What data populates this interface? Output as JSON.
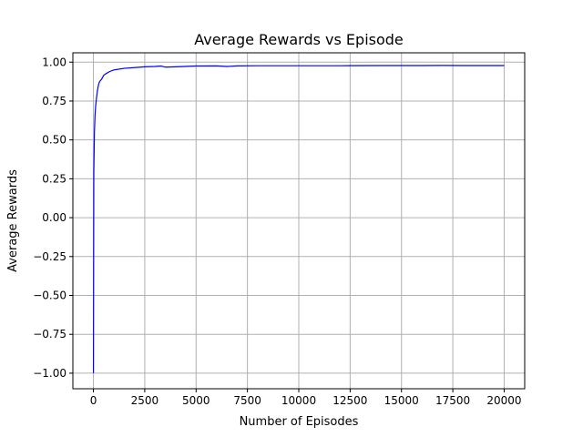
{
  "chart_data": {
    "type": "line",
    "title": "Average Rewards vs Episode",
    "xlabel": "Number of Episodes",
    "ylabel": "Average Rewards",
    "xlim": [
      -1000,
      21000
    ],
    "ylim": [
      -1.1,
      1.06
    ],
    "xticks": [
      0,
      2500,
      5000,
      7500,
      10000,
      12500,
      15000,
      17500,
      20000
    ],
    "yticks": [
      -1.0,
      -0.75,
      -0.5,
      -0.25,
      0.0,
      0.25,
      0.5,
      0.75,
      1.0
    ],
    "ytick_labels": [
      "−1.00",
      "−0.75",
      "−0.50",
      "−0.25",
      "0.00",
      "0.25",
      "0.50",
      "0.75",
      "1.00"
    ],
    "grid": true,
    "legend": false,
    "series": [
      {
        "color": "#0000ff",
        "x": [
          1,
          20,
          50,
          80,
          110,
          150,
          200,
          250,
          300,
          400,
          500,
          600,
          800,
          1000,
          1500,
          2000,
          2500,
          3000,
          3300,
          3500,
          4000,
          5000,
          6000,
          6500,
          7000,
          8000,
          9000,
          10000,
          12000,
          14000,
          16000,
          17000,
          18000,
          20000
        ],
        "y": [
          -1.0,
          0.3,
          0.55,
          0.66,
          0.72,
          0.77,
          0.82,
          0.855,
          0.875,
          0.89,
          0.915,
          0.925,
          0.94,
          0.95,
          0.96,
          0.965,
          0.97,
          0.972,
          0.975,
          0.968,
          0.97,
          0.975,
          0.976,
          0.972,
          0.976,
          0.977,
          0.977,
          0.977,
          0.977,
          0.978,
          0.978,
          0.979,
          0.978,
          0.978
        ]
      }
    ]
  }
}
